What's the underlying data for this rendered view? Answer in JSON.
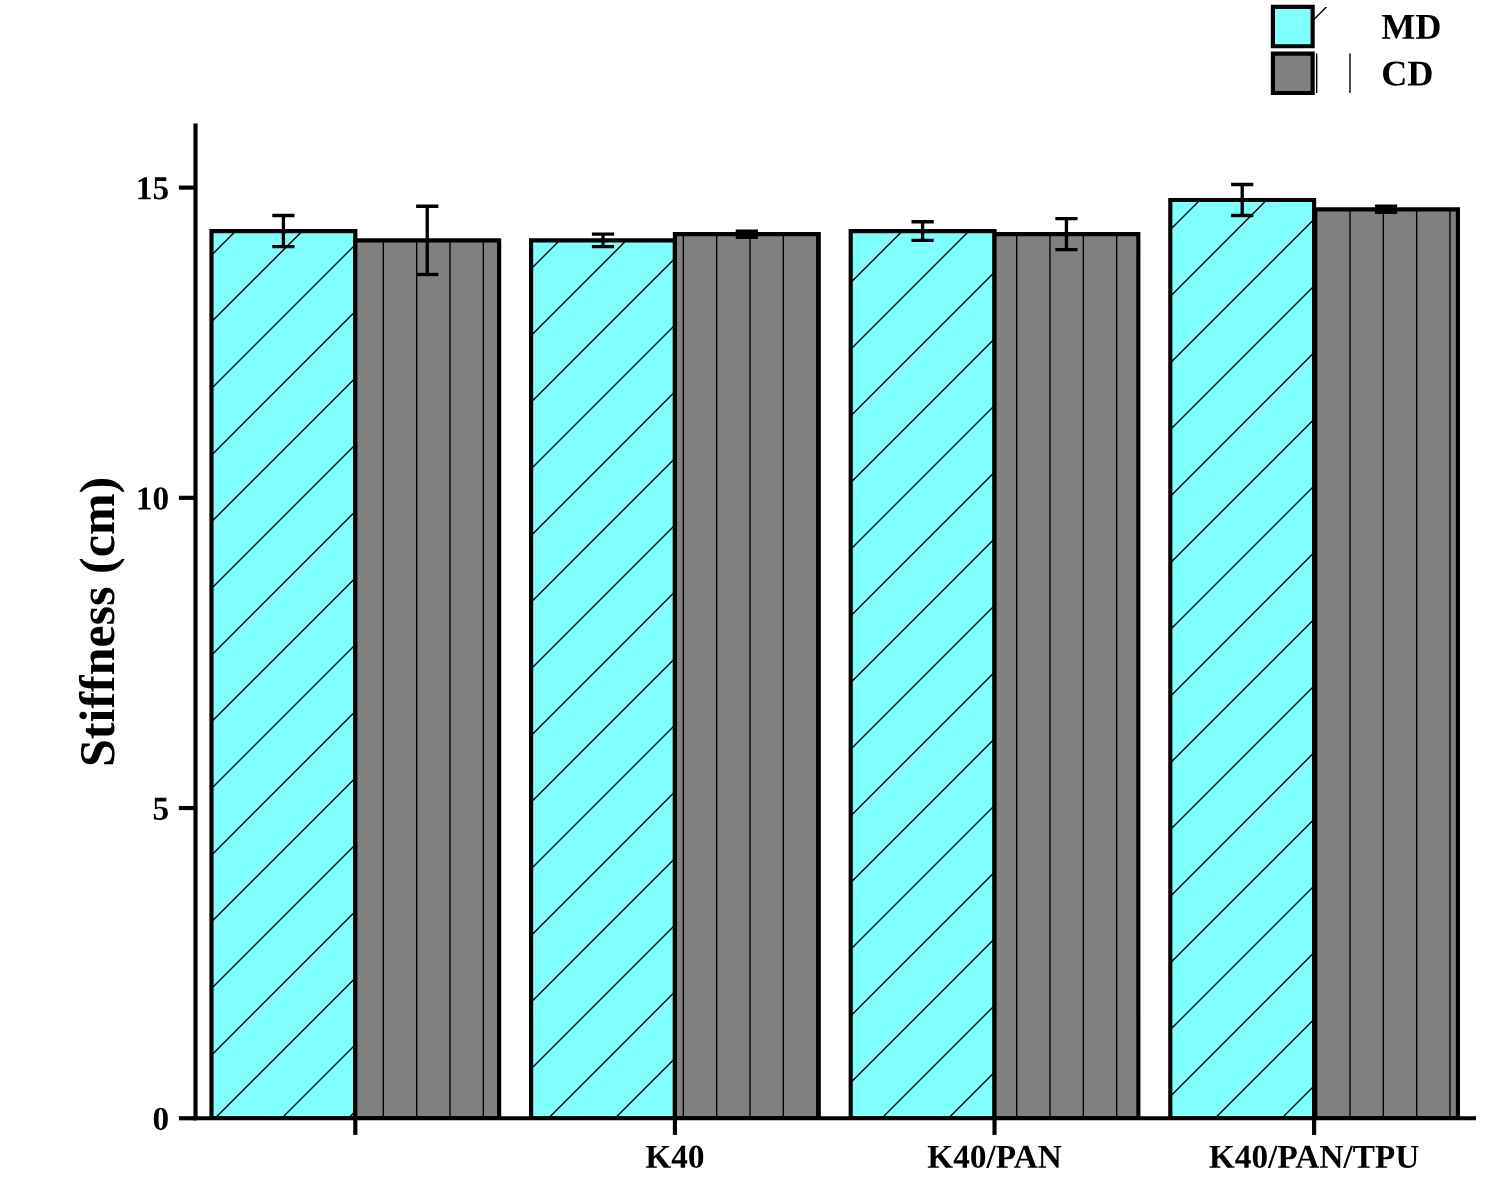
{
  "chart_data": {
    "type": "bar",
    "ylabel": "Stiffness (cm)",
    "categories": [
      null,
      "K40",
      "K40/PAN",
      "K40/PAN/TPU"
    ],
    "series": [
      {
        "name": "MD",
        "color": "#80ffff",
        "values": [
          14.3,
          14.15,
          14.3,
          14.8
        ],
        "errors": [
          0.25,
          0.1,
          0.15,
          0.25
        ]
      },
      {
        "name": "CD",
        "color": "#808080",
        "values": [
          14.15,
          14.25,
          14.25,
          14.65
        ],
        "errors": [
          0.55,
          0.05,
          0.25,
          0.05
        ]
      }
    ],
    "ylim": [
      0,
      16
    ],
    "yticks": [
      0,
      5,
      10,
      15
    ],
    "grid": false,
    "legend": "top right"
  }
}
